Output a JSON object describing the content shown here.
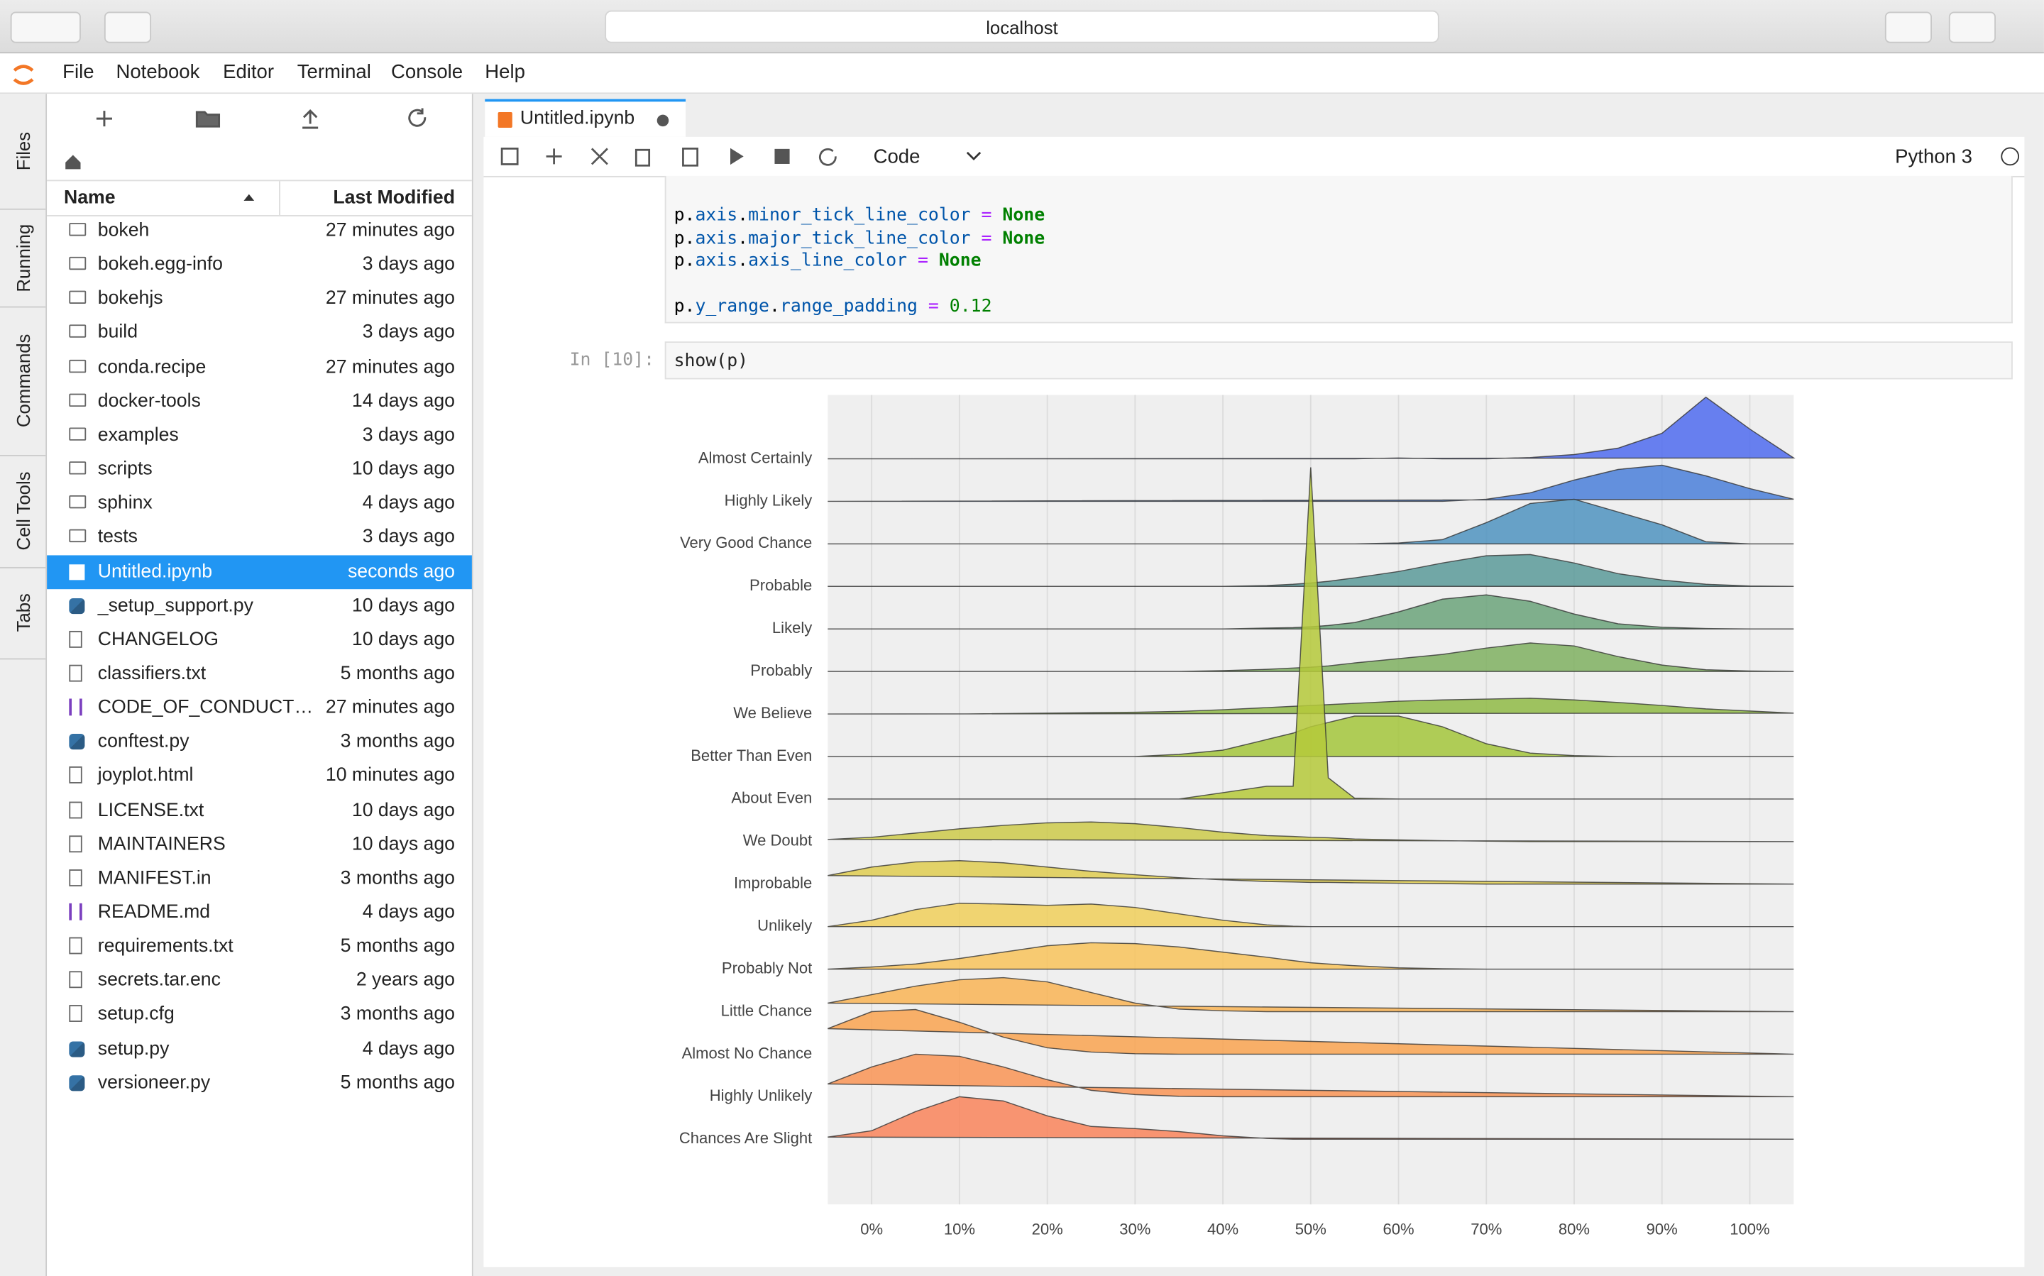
{
  "browser": {
    "url": "localhost"
  },
  "menu": [
    "File",
    "Notebook",
    "Editor",
    "Terminal",
    "Console",
    "Help"
  ],
  "side_tabs": [
    "Files",
    "Running",
    "Commands",
    "Cell Tools",
    "Tabs"
  ],
  "file_browser": {
    "headers": {
      "name": "Name",
      "modified": "Last Modified"
    },
    "selected": 10,
    "files": [
      {
        "name": "bokeh",
        "modified": "27 minutes ago",
        "icon": "folder"
      },
      {
        "name": "bokeh.egg-info",
        "modified": "3 days ago",
        "icon": "folder"
      },
      {
        "name": "bokehjs",
        "modified": "27 minutes ago",
        "icon": "folder"
      },
      {
        "name": "build",
        "modified": "3 days ago",
        "icon": "folder"
      },
      {
        "name": "conda.recipe",
        "modified": "27 minutes ago",
        "icon": "folder"
      },
      {
        "name": "docker-tools",
        "modified": "14 days ago",
        "icon": "folder"
      },
      {
        "name": "examples",
        "modified": "3 days ago",
        "icon": "folder"
      },
      {
        "name": "scripts",
        "modified": "10 days ago",
        "icon": "folder"
      },
      {
        "name": "sphinx",
        "modified": "4 days ago",
        "icon": "folder"
      },
      {
        "name": "tests",
        "modified": "3 days ago",
        "icon": "folder"
      },
      {
        "name": "Untitled.ipynb",
        "modified": "seconds ago",
        "icon": "notebook"
      },
      {
        "name": "_setup_support.py",
        "modified": "10 days ago",
        "icon": "python"
      },
      {
        "name": "CHANGELOG",
        "modified": "10 days ago",
        "icon": "file"
      },
      {
        "name": "classifiers.txt",
        "modified": "5 months ago",
        "icon": "file"
      },
      {
        "name": "CODE_OF_CONDUCT…",
        "modified": "27 minutes ago",
        "icon": "markdown"
      },
      {
        "name": "conftest.py",
        "modified": "3 months ago",
        "icon": "python"
      },
      {
        "name": "joyplot.html",
        "modified": "10 minutes ago",
        "icon": "file"
      },
      {
        "name": "LICENSE.txt",
        "modified": "10 days ago",
        "icon": "file"
      },
      {
        "name": "MAINTAINERS",
        "modified": "10 days ago",
        "icon": "file"
      },
      {
        "name": "MANIFEST.in",
        "modified": "3 months ago",
        "icon": "file"
      },
      {
        "name": "README.md",
        "modified": "4 days ago",
        "icon": "markdown"
      },
      {
        "name": "requirements.txt",
        "modified": "5 months ago",
        "icon": "file"
      },
      {
        "name": "secrets.tar.enc",
        "modified": "2 years ago",
        "icon": "file"
      },
      {
        "name": "setup.cfg",
        "modified": "3 months ago",
        "icon": "file"
      },
      {
        "name": "setup.py",
        "modified": "4 days ago",
        "icon": "python"
      },
      {
        "name": "versioneer.py",
        "modified": "5 months ago",
        "icon": "python"
      }
    ]
  },
  "notebook": {
    "tab": "Untitled.ipynb",
    "cell_type": "Code",
    "kernel": "Python 3",
    "code_lines": [
      [
        [
          "p.",
          "n"
        ],
        [
          "axis",
          "a"
        ],
        [
          ".",
          "n"
        ],
        [
          "minor_tick_line_color",
          "a"
        ],
        [
          " = ",
          "o"
        ],
        [
          "None",
          "k"
        ]
      ],
      [
        [
          "p.",
          "n"
        ],
        [
          "axis",
          "a"
        ],
        [
          ".",
          "n"
        ],
        [
          "major_tick_line_color",
          "a"
        ],
        [
          " = ",
          "o"
        ],
        [
          "None",
          "k"
        ]
      ],
      [
        [
          "p.",
          "n"
        ],
        [
          "axis",
          "a"
        ],
        [
          ".",
          "n"
        ],
        [
          "axis_line_color",
          "a"
        ],
        [
          " = ",
          "o"
        ],
        [
          "None",
          "k"
        ]
      ],
      [],
      [
        [
          "p.",
          "n"
        ],
        [
          "y_range",
          "a"
        ],
        [
          ".",
          "n"
        ],
        [
          "range_padding",
          "a"
        ],
        [
          " = ",
          "o"
        ],
        [
          "0.12",
          "m"
        ]
      ]
    ],
    "prompt": "In [10]:",
    "input": "show(p)"
  },
  "chart_data": {
    "type": "ridgeline",
    "categories": [
      "Almost Certainly",
      "Highly Likely",
      "Very Good Chance",
      "Probable",
      "Likely",
      "Probably",
      "We Believe",
      "Better Than Even",
      "About Even",
      "We Doubt",
      "Improbable",
      "Unlikely",
      "Probably Not",
      "Little Chance",
      "Almost No Chance",
      "Highly Unlikely",
      "Chances Are Slight"
    ],
    "x": [
      -5,
      0,
      5,
      10,
      15,
      20,
      25,
      30,
      35,
      40,
      45,
      48,
      50,
      52,
      55,
      60,
      65,
      70,
      75,
      80,
      85,
      90,
      95,
      100,
      105
    ],
    "xlim": [
      -5,
      105
    ],
    "xticks": [
      {
        "value": 0,
        "label": "0%"
      },
      {
        "value": 10,
        "label": "10%"
      },
      {
        "value": 20,
        "label": "20%"
      },
      {
        "value": 30,
        "label": "30%"
      },
      {
        "value": 40,
        "label": "40%"
      },
      {
        "value": 50,
        "label": "50%"
      },
      {
        "value": 60,
        "label": "60%"
      },
      {
        "value": 70,
        "label": "70%"
      },
      {
        "value": 80,
        "label": "80%"
      },
      {
        "value": 90,
        "label": "90%"
      },
      {
        "value": 100,
        "label": "100%"
      }
    ],
    "grid": true,
    "series": [
      {
        "color": "#4f6bef",
        "values": [
          0,
          0,
          0,
          0,
          0,
          0,
          0,
          0,
          0,
          0,
          0,
          0,
          0,
          0,
          0,
          0.02,
          0,
          0,
          0.03,
          0.1,
          0.25,
          0.6,
          1.45,
          0.7,
          0.02
        ]
      },
      {
        "color": "#4a7fd9",
        "values": [
          0,
          0,
          0,
          0,
          0,
          0,
          0,
          0,
          0,
          0,
          0,
          0,
          0,
          0,
          0,
          0,
          0,
          0.05,
          0.2,
          0.5,
          0.75,
          0.85,
          0.6,
          0.3,
          0.05
        ]
      },
      {
        "color": "#4f93bf",
        "values": [
          0,
          0,
          0,
          0,
          0,
          0,
          0,
          0,
          0,
          0,
          0,
          0,
          0,
          0,
          0,
          0.02,
          0.1,
          0.5,
          0.95,
          1.05,
          0.75,
          0.45,
          0.05,
          0,
          0
        ]
      },
      {
        "color": "#5a9a99",
        "values": [
          0,
          0,
          0,
          0,
          0,
          0,
          0,
          0,
          0,
          0,
          0.02,
          0.05,
          0.08,
          0.12,
          0.2,
          0.35,
          0.55,
          0.72,
          0.75,
          0.55,
          0.3,
          0.15,
          0.05,
          0.01,
          0
        ]
      },
      {
        "color": "#6ba37a",
        "values": [
          0,
          0,
          0,
          0,
          0,
          0,
          0,
          0,
          0,
          0,
          0.02,
          0.03,
          0.05,
          0.08,
          0.15,
          0.4,
          0.7,
          0.8,
          0.65,
          0.35,
          0.12,
          0.04,
          0.01,
          0,
          0
        ]
      },
      {
        "color": "#7fb060",
        "values": [
          0,
          0,
          0,
          0,
          0,
          0,
          0,
          0,
          0,
          0.02,
          0.05,
          0.08,
          0.1,
          0.13,
          0.2,
          0.3,
          0.4,
          0.55,
          0.67,
          0.6,
          0.35,
          0.15,
          0.04,
          0.01,
          0
        ]
      },
      {
        "color": "#8fba45",
        "values": [
          0,
          0,
          0,
          0,
          0.01,
          0.02,
          0.03,
          0.04,
          0.06,
          0.1,
          0.15,
          0.18,
          0.2,
          0.22,
          0.25,
          0.3,
          0.33,
          0.35,
          0.37,
          0.33,
          0.27,
          0.2,
          0.12,
          0.07,
          0.02
        ]
      },
      {
        "color": "#a3c53b",
        "values": [
          0,
          0,
          0,
          0,
          0,
          0,
          0,
          0,
          0.05,
          0.15,
          0.4,
          0.55,
          0.7,
          0.8,
          0.95,
          0.95,
          0.7,
          0.3,
          0.08,
          0.02,
          0,
          0,
          0,
          0,
          0
        ]
      },
      {
        "color": "#b5c93a",
        "values": [
          0,
          0,
          0,
          0,
          0,
          0,
          0,
          0,
          0,
          0.15,
          0.3,
          0.3,
          7.8,
          0.5,
          0.02,
          0,
          0,
          0,
          0,
          0,
          0,
          0,
          0,
          0,
          0
        ]
      },
      {
        "color": "#cdca4a",
        "values": [
          0.05,
          0.1,
          0.2,
          0.3,
          0.38,
          0.44,
          0.46,
          0.42,
          0.33,
          0.22,
          0.14,
          0.12,
          0.1,
          0.09,
          0.06,
          0.04,
          0.02,
          0.01,
          0,
          0,
          0,
          0,
          0,
          0,
          0
        ]
      },
      {
        "color": "#dfcc50",
        "values": [
          0.2,
          0.4,
          0.52,
          0.55,
          0.5,
          0.4,
          0.3,
          0.22,
          0.15,
          0.1,
          0.06,
          0.05,
          0.04,
          0.04,
          0.03,
          0.02,
          0.01,
          0,
          0,
          0,
          0,
          0,
          0,
          0,
          0
        ]
      },
      {
        "color": "#f0cf5a",
        "values": [
          0,
          0.15,
          0.4,
          0.55,
          0.53,
          0.5,
          0.53,
          0.45,
          0.3,
          0.15,
          0.04,
          0.01,
          0,
          0,
          0,
          0,
          0,
          0,
          0,
          0,
          0,
          0,
          0,
          0,
          0
        ]
      },
      {
        "color": "#f8c35a",
        "values": [
          0,
          0.05,
          0.12,
          0.25,
          0.4,
          0.55,
          0.62,
          0.6,
          0.52,
          0.4,
          0.28,
          0.2,
          0.15,
          0.12,
          0.08,
          0.03,
          0.01,
          0,
          0,
          0,
          0,
          0,
          0,
          0,
          0
        ]
      },
      {
        "color": "#f9b455",
        "values": [
          0.2,
          0.4,
          0.6,
          0.75,
          0.8,
          0.7,
          0.45,
          0.2,
          0.06,
          0.02,
          0,
          0,
          0,
          0,
          0,
          0,
          0,
          0,
          0,
          0,
          0,
          0,
          0,
          0,
          0
        ]
      },
      {
        "color": "#f9a350",
        "values": [
          0.6,
          1.0,
          1.05,
          0.75,
          0.4,
          0.15,
          0.05,
          0.01,
          0,
          0,
          0,
          0,
          0,
          0,
          0,
          0,
          0,
          0,
          0,
          0,
          0,
          0,
          0,
          0,
          0
        ]
      },
      {
        "color": "#f99455",
        "values": [
          0.3,
          0.7,
          1.0,
          0.95,
          0.7,
          0.4,
          0.15,
          0.05,
          0.01,
          0,
          0,
          0,
          0,
          0,
          0,
          0,
          0,
          0,
          0,
          0,
          0,
          0,
          0,
          0,
          0
        ]
      },
      {
        "color": "#f9845a",
        "values": [
          0.05,
          0.2,
          0.65,
          1.0,
          0.9,
          0.55,
          0.3,
          0.25,
          0.18,
          0.08,
          0.02,
          0,
          0,
          0,
          0,
          0,
          0,
          0,
          0,
          0,
          0,
          0,
          0,
          0,
          0
        ]
      }
    ]
  }
}
